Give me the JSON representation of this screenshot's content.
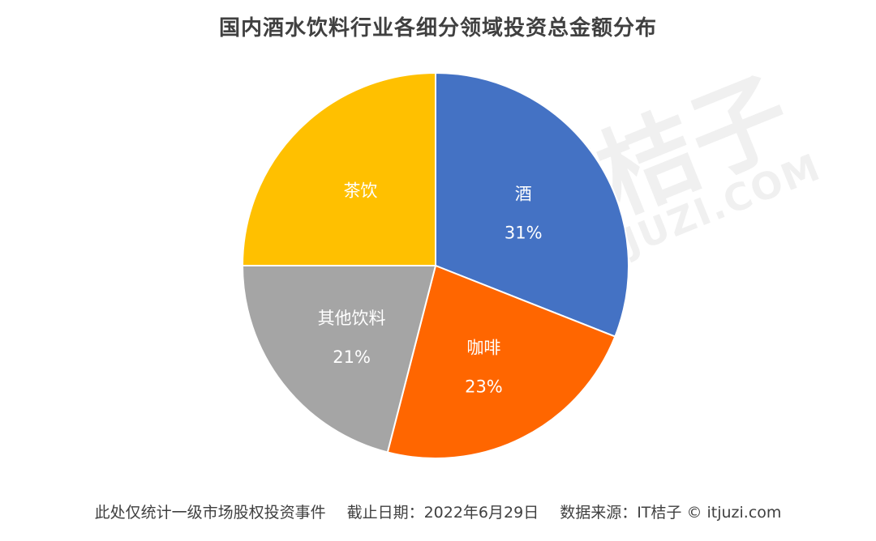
{
  "chart_data": {
    "type": "pie",
    "title": "国内酒水饮料行业各细分领域投资总金额分布",
    "slices": [
      {
        "label": "酒",
        "value": 31,
        "value_label": "31%",
        "color": "#4472C4"
      },
      {
        "label": "咖啡",
        "value": 23,
        "value_label": "23%",
        "color": "#FF6600"
      },
      {
        "label": "其他饮料",
        "value": 21,
        "value_label": "21%",
        "color": "#A5A5A5"
      },
      {
        "label": "茶饮",
        "value": 25,
        "value_label": "",
        "color": "#FFC000"
      }
    ]
  },
  "watermark": {
    "main": "IT桔子",
    "sub": "ITJUZI.COM"
  },
  "footer": {
    "note": "此处仅统计一级市场股权投资事件",
    "date": "截止日期：2022年6月29日",
    "source": "数据来源：IT桔子 © itjuzi.com"
  }
}
